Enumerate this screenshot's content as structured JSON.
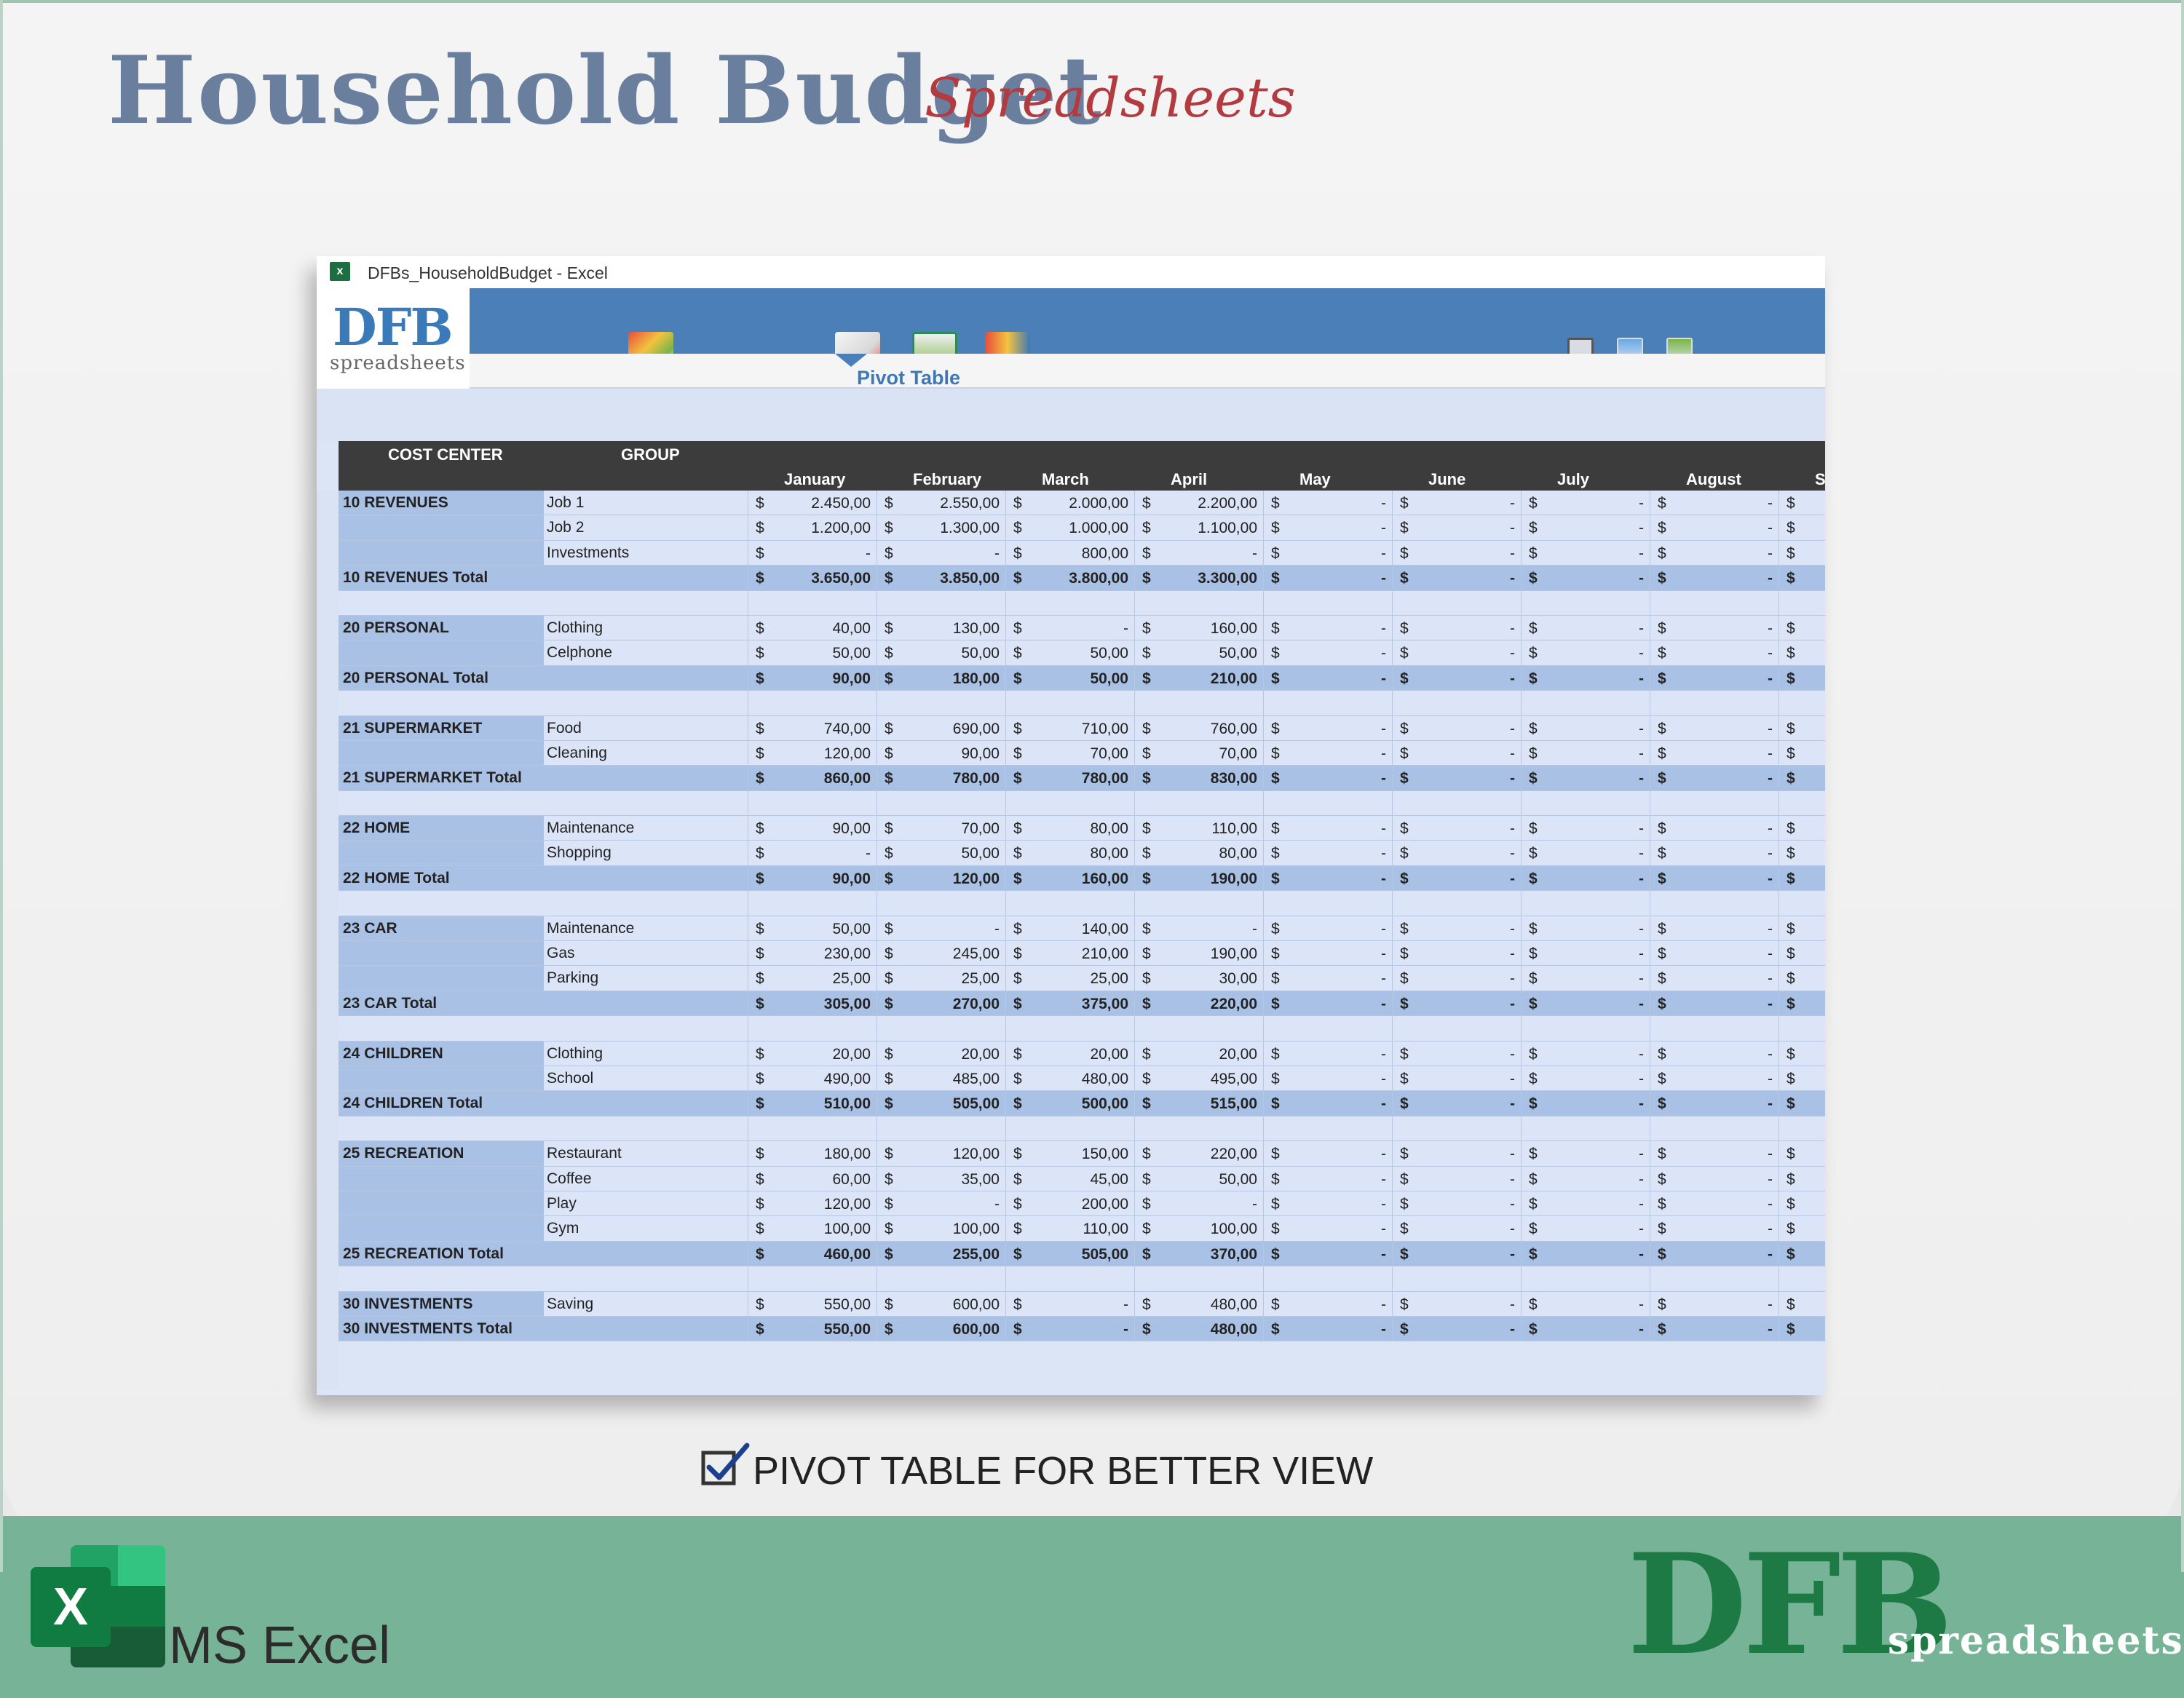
{
  "header": {
    "title": "Household Budget",
    "subtitle": "Spreadsheets"
  },
  "window": {
    "title": "DFBs_HouseholdBudget - Excel",
    "logo_main": "DFB",
    "logo_sub": "spreadsheets",
    "active_tab": "Pivot Table"
  },
  "columns": {
    "cost_center": "COST CENTER",
    "group": "GROUP",
    "months": [
      "January",
      "February",
      "March",
      "April",
      "May",
      "June",
      "July",
      "August",
      "Sep"
    ]
  },
  "rows": [
    {
      "type": "detail",
      "cc": "10 REVENUES",
      "group": "Job 1",
      "values": [
        "2.450,00",
        "2.550,00",
        "2.000,00",
        "2.200,00",
        "-",
        "-",
        "-",
        "-",
        ""
      ]
    },
    {
      "type": "detail",
      "cc": "",
      "group": "Job 2",
      "values": [
        "1.200,00",
        "1.300,00",
        "1.000,00",
        "1.100,00",
        "-",
        "-",
        "-",
        "-",
        ""
      ]
    },
    {
      "type": "detail",
      "cc": "",
      "group": "Investments",
      "values": [
        "-",
        "-",
        "800,00",
        "-",
        "-",
        "-",
        "-",
        "-",
        ""
      ]
    },
    {
      "type": "total",
      "cc": "10 REVENUES Total",
      "group": "",
      "values": [
        "3.650,00",
        "3.850,00",
        "3.800,00",
        "3.300,00",
        "-",
        "-",
        "-",
        "-",
        ""
      ]
    },
    {
      "type": "blank"
    },
    {
      "type": "detail",
      "cc": "20 PERSONAL",
      "group": "Clothing",
      "values": [
        "40,00",
        "130,00",
        "-",
        "160,00",
        "-",
        "-",
        "-",
        "-",
        ""
      ]
    },
    {
      "type": "detail",
      "cc": "",
      "group": "Celphone",
      "values": [
        "50,00",
        "50,00",
        "50,00",
        "50,00",
        "-",
        "-",
        "-",
        "-",
        ""
      ]
    },
    {
      "type": "total",
      "cc": "20 PERSONAL Total",
      "group": "",
      "values": [
        "90,00",
        "180,00",
        "50,00",
        "210,00",
        "-",
        "-",
        "-",
        "-",
        ""
      ]
    },
    {
      "type": "blank"
    },
    {
      "type": "detail",
      "cc": "21 SUPERMARKET",
      "group": "Food",
      "values": [
        "740,00",
        "690,00",
        "710,00",
        "760,00",
        "-",
        "-",
        "-",
        "-",
        ""
      ]
    },
    {
      "type": "detail",
      "cc": "",
      "group": "Cleaning",
      "values": [
        "120,00",
        "90,00",
        "70,00",
        "70,00",
        "-",
        "-",
        "-",
        "-",
        ""
      ]
    },
    {
      "type": "total",
      "cc": "21 SUPERMARKET Total",
      "group": "",
      "values": [
        "860,00",
        "780,00",
        "780,00",
        "830,00",
        "-",
        "-",
        "-",
        "-",
        ""
      ]
    },
    {
      "type": "blank"
    },
    {
      "type": "detail",
      "cc": "22 HOME",
      "group": "Maintenance",
      "values": [
        "90,00",
        "70,00",
        "80,00",
        "110,00",
        "-",
        "-",
        "-",
        "-",
        ""
      ]
    },
    {
      "type": "detail",
      "cc": "",
      "group": "Shopping",
      "values": [
        "-",
        "50,00",
        "80,00",
        "80,00",
        "-",
        "-",
        "-",
        "-",
        ""
      ]
    },
    {
      "type": "total",
      "cc": "22 HOME Total",
      "group": "",
      "values": [
        "90,00",
        "120,00",
        "160,00",
        "190,00",
        "-",
        "-",
        "-",
        "-",
        ""
      ]
    },
    {
      "type": "blank"
    },
    {
      "type": "detail",
      "cc": "23 CAR",
      "group": "Maintenance",
      "values": [
        "50,00",
        "-",
        "140,00",
        "-",
        "-",
        "-",
        "-",
        "-",
        ""
      ]
    },
    {
      "type": "detail",
      "cc": "",
      "group": "Gas",
      "values": [
        "230,00",
        "245,00",
        "210,00",
        "190,00",
        "-",
        "-",
        "-",
        "-",
        ""
      ]
    },
    {
      "type": "detail",
      "cc": "",
      "group": "Parking",
      "values": [
        "25,00",
        "25,00",
        "25,00",
        "30,00",
        "-",
        "-",
        "-",
        "-",
        ""
      ]
    },
    {
      "type": "total",
      "cc": "23 CAR Total",
      "group": "",
      "values": [
        "305,00",
        "270,00",
        "375,00",
        "220,00",
        "-",
        "-",
        "-",
        "-",
        ""
      ]
    },
    {
      "type": "blank"
    },
    {
      "type": "detail",
      "cc": "24 CHILDREN",
      "group": "Clothing",
      "values": [
        "20,00",
        "20,00",
        "20,00",
        "20,00",
        "-",
        "-",
        "-",
        "-",
        ""
      ]
    },
    {
      "type": "detail",
      "cc": "",
      "group": "School",
      "values": [
        "490,00",
        "485,00",
        "480,00",
        "495,00",
        "-",
        "-",
        "-",
        "-",
        ""
      ]
    },
    {
      "type": "total",
      "cc": "24 CHILDREN Total",
      "group": "",
      "values": [
        "510,00",
        "505,00",
        "500,00",
        "515,00",
        "-",
        "-",
        "-",
        "-",
        ""
      ]
    },
    {
      "type": "blank"
    },
    {
      "type": "detail",
      "cc": "25 RECREATION",
      "group": "Restaurant",
      "values": [
        "180,00",
        "120,00",
        "150,00",
        "220,00",
        "-",
        "-",
        "-",
        "-",
        ""
      ]
    },
    {
      "type": "detail",
      "cc": "",
      "group": "Coffee",
      "values": [
        "60,00",
        "35,00",
        "45,00",
        "50,00",
        "-",
        "-",
        "-",
        "-",
        ""
      ]
    },
    {
      "type": "detail",
      "cc": "",
      "group": "Play",
      "values": [
        "120,00",
        "-",
        "200,00",
        "-",
        "-",
        "-",
        "-",
        "-",
        ""
      ]
    },
    {
      "type": "detail",
      "cc": "",
      "group": "Gym",
      "values": [
        "100,00",
        "100,00",
        "110,00",
        "100,00",
        "-",
        "-",
        "-",
        "-",
        ""
      ]
    },
    {
      "type": "total",
      "cc": "25 RECREATION Total",
      "group": "",
      "values": [
        "460,00",
        "255,00",
        "505,00",
        "370,00",
        "-",
        "-",
        "-",
        "-",
        ""
      ]
    },
    {
      "type": "blank"
    },
    {
      "type": "detail",
      "cc": "30 INVESTMENTS",
      "group": "Saving",
      "values": [
        "550,00",
        "600,00",
        "-",
        "480,00",
        "-",
        "-",
        "-",
        "-",
        ""
      ]
    },
    {
      "type": "total",
      "cc": "30 INVESTMENTS Total",
      "group": "",
      "values": [
        "550,00",
        "600,00",
        "-",
        "480,00",
        "-",
        "-",
        "-",
        "-",
        ""
      ]
    }
  ],
  "currency": "$",
  "feature_caption": "PIVOT TABLE FOR BETTER VIEW",
  "footer": {
    "app_label": "MS Excel",
    "excel_letter": "X",
    "brand_main": "DFB",
    "brand_sub": "spreadsheets"
  },
  "colors": {
    "title": "#6a7f9e",
    "subtitle": "#b33a3f",
    "ribbon": "#4b7fb8",
    "band": "#77b497",
    "brand": "#1e7a45"
  }
}
